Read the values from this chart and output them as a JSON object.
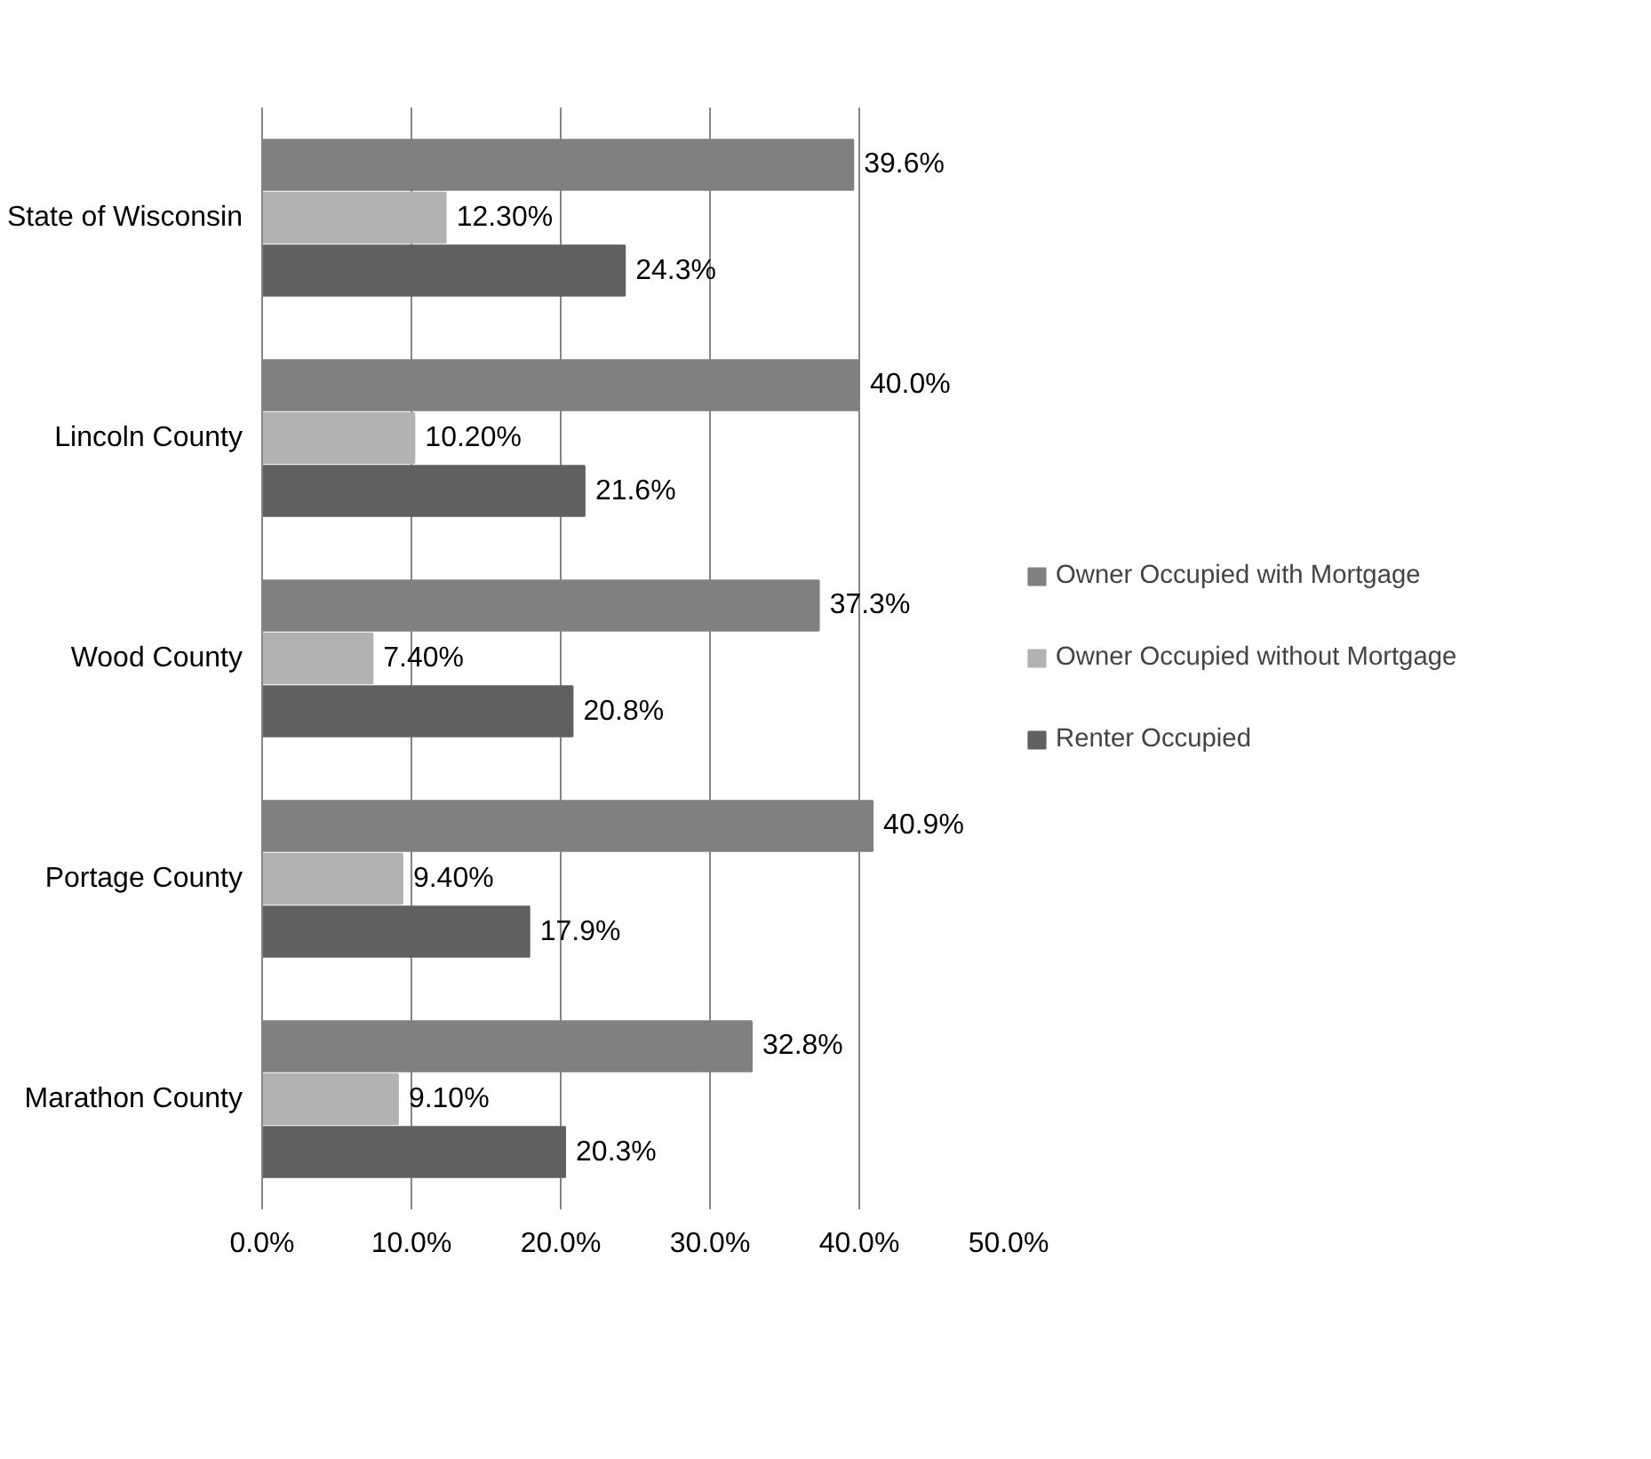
{
  "chart_data": {
    "type": "bar",
    "orientation": "horizontal",
    "categories": [
      "State of Wisconsin",
      "Lincoln County",
      "Wood County",
      "Portage County",
      "Marathon County"
    ],
    "series": [
      {
        "name": "Owner Occupied with Mortgage",
        "color": "#808080",
        "values": [
          39.6,
          40.0,
          37.3,
          40.9,
          32.8
        ],
        "value_labels": [
          "39.6%",
          "40.0%",
          "37.3%",
          "40.9%",
          "32.8%"
        ]
      },
      {
        "name": "Owner Occupied without Mortgage",
        "color": "#b2b2b2",
        "values": [
          12.3,
          10.2,
          7.4,
          9.4,
          9.1
        ],
        "value_labels": [
          "12.30%",
          "10.20%",
          "7.40%",
          "9.40%",
          "9.10%"
        ]
      },
      {
        "name": "Renter Occupied",
        "color": "#606060",
        "values": [
          24.3,
          21.6,
          20.8,
          17.9,
          20.3
        ],
        "value_labels": [
          "24.3%",
          "21.6%",
          "20.8%",
          "17.9%",
          "20.3%"
        ]
      }
    ],
    "xlim": [
      0,
      50
    ],
    "xticks": [
      {
        "value": 0,
        "label": "0.0%"
      },
      {
        "value": 10,
        "label": "10.0%"
      },
      {
        "value": 20,
        "label": "20.0%"
      },
      {
        "value": 30,
        "label": "30.0%"
      },
      {
        "value": 40,
        "label": "40.0%"
      },
      {
        "value": 50,
        "label": "50.0%"
      }
    ],
    "grid": "x",
    "legend": "right"
  }
}
